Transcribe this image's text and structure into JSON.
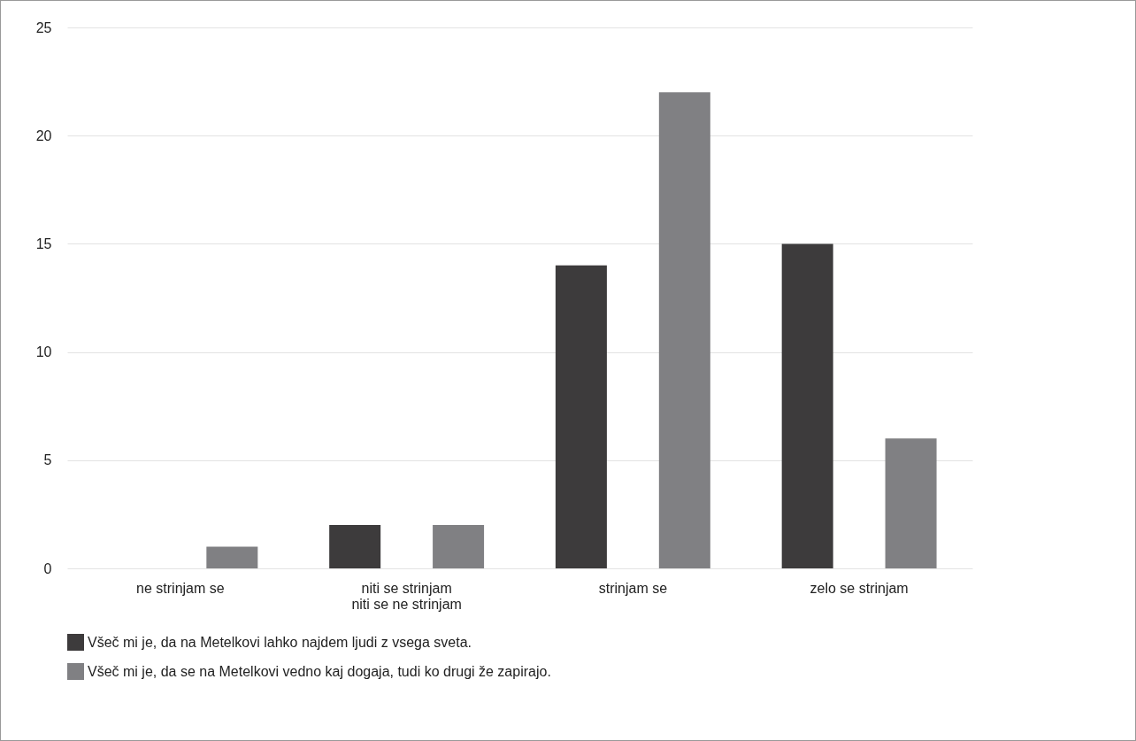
{
  "chart_data": {
    "type": "bar",
    "categories": [
      "ne strinjam se",
      "niti se strinjam\nniti se ne strinjam",
      "strinjam se",
      "zelo se strinjam"
    ],
    "series": [
      {
        "name": "Všeč mi je, da na Metelkovi lahko najdem ljudi z vsega sveta.",
        "color": "#3d3b3c",
        "values": [
          0,
          2,
          14,
          15
        ]
      },
      {
        "name": "Všeč mi je, da se na Metelkovi vedno kaj dogaja, tudi ko drugi že zapirajo.",
        "color": "#808083",
        "values": [
          1,
          2,
          22,
          6
        ]
      }
    ],
    "ylim": [
      0,
      25
    ],
    "yticks": [
      0,
      5,
      10,
      15,
      20,
      25
    ],
    "grid": "y",
    "legend": "bottom"
  }
}
